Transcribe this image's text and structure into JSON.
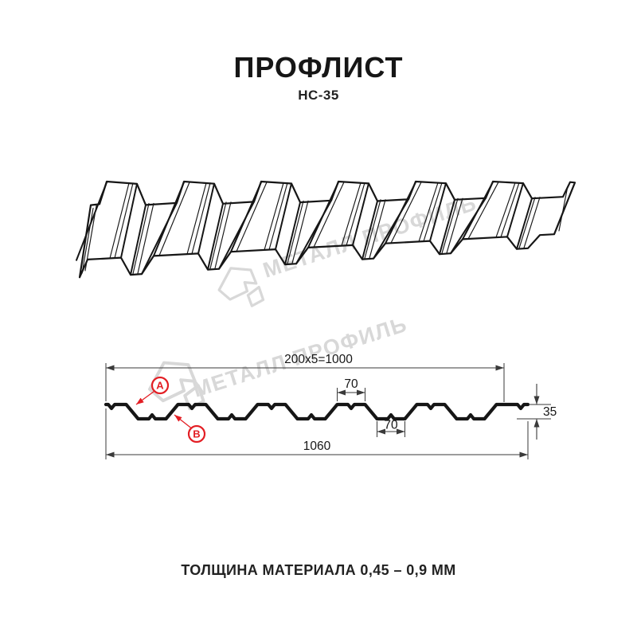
{
  "title": "ПРОФЛИСТ",
  "subtitle": "НС-35",
  "footer": "ТОЛЩИНА МАТЕРИАЛА 0,45 – 0,9 ММ",
  "watermark": {
    "text": "МЕТАЛЛ ПРОФИЛЬ",
    "color": "#d8d8d8"
  },
  "drawing": {
    "dim_coverage": "200x5=1000",
    "dim_crest_width": "70",
    "dim_valley_width": "70",
    "dim_height": "35",
    "dim_overall_width": "1060",
    "marker_a": "A",
    "marker_b": "B"
  },
  "colors": {
    "accent_red": "#e31e24",
    "ink": "#161616",
    "dim_line": "#3a3a3a"
  }
}
